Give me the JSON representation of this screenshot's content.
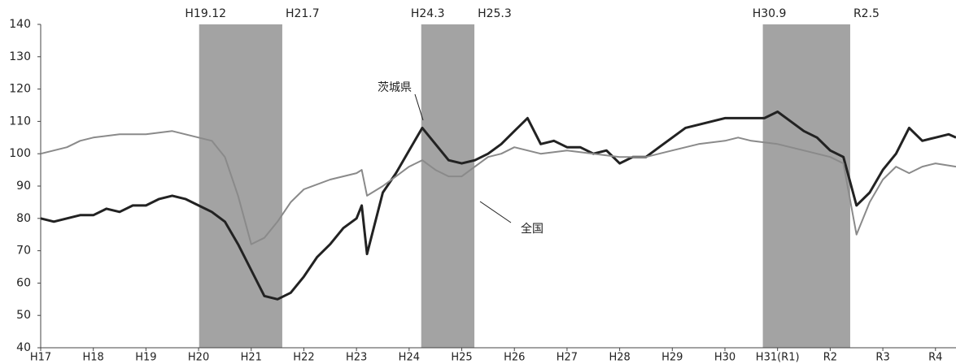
{
  "chart_data": {
    "type": "line",
    "xlim": [
      17,
      34.39
    ],
    "xticks": [
      {
        "value": 17,
        "label": "H17"
      },
      {
        "value": 18,
        "label": "H18"
      },
      {
        "value": 19,
        "label": "H19"
      },
      {
        "value": 20,
        "label": "H20"
      },
      {
        "value": 21,
        "label": "H21"
      },
      {
        "value": 22,
        "label": "H22"
      },
      {
        "value": 23,
        "label": "H23"
      },
      {
        "value": 24,
        "label": "H24"
      },
      {
        "value": 25,
        "label": "H25"
      },
      {
        "value": 26,
        "label": "H26"
      },
      {
        "value": 27,
        "label": "H27"
      },
      {
        "value": 28,
        "label": "H28"
      },
      {
        "value": 29,
        "label": "H29"
      },
      {
        "value": 30,
        "label": "H30"
      },
      {
        "value": 31,
        "label": "H31(R1)"
      },
      {
        "value": 32,
        "label": "R2"
      },
      {
        "value": 33,
        "label": "R3"
      },
      {
        "value": 34,
        "label": "R4"
      }
    ],
    "ylim": [
      40,
      140
    ],
    "yticks": [
      40,
      50,
      60,
      70,
      80,
      90,
      100,
      110,
      120,
      130,
      140
    ],
    "shading": [
      {
        "start": 20.01,
        "end": 21.59,
        "start_label": "H19.12",
        "end_label": "H21.7",
        "color": "#a3a3a3"
      },
      {
        "start": 24.23,
        "end": 25.24,
        "start_label": "H24.3",
        "end_label": "H25.3",
        "color": "#a3a3a3"
      },
      {
        "start": 30.72,
        "end": 32.38,
        "start_label": "H30.9",
        "end_label": "R2.5",
        "color": "#a3a3a3"
      }
    ],
    "series": [
      {
        "name": "茨城県",
        "color": "#222222",
        "x": [
          17,
          17.25,
          17.5,
          17.75,
          18,
          18.25,
          18.5,
          18.75,
          19,
          19.25,
          19.5,
          19.75,
          20,
          20.25,
          20.5,
          20.75,
          21,
          21.25,
          21.5,
          21.75,
          22,
          22.25,
          22.5,
          22.75,
          23,
          23.1,
          23.2,
          23.5,
          23.75,
          24,
          24.25,
          24.5,
          24.75,
          25,
          25.25,
          25.5,
          25.75,
          26,
          26.25,
          26.5,
          26.75,
          27,
          27.25,
          27.5,
          27.75,
          28,
          28.25,
          28.5,
          28.75,
          29,
          29.25,
          29.5,
          29.75,
          30,
          30.25,
          30.5,
          30.75,
          31,
          31.25,
          31.5,
          31.75,
          32,
          32.25,
          32.5,
          32.75,
          33,
          33.25,
          33.5,
          33.75,
          34,
          34.25,
          34.39
        ],
        "values": [
          80,
          79,
          80,
          81,
          81,
          83,
          82,
          84,
          84,
          86,
          87,
          86,
          84,
          82,
          79,
          72,
          64,
          56,
          55,
          57,
          62,
          68,
          72,
          77,
          80,
          84,
          69,
          88,
          94,
          101,
          108,
          103,
          98,
          97,
          98,
          100,
          103,
          107,
          111,
          103,
          104,
          102,
          102,
          100,
          101,
          97,
          99,
          99,
          102,
          105,
          108,
          109,
          110,
          111,
          111,
          111,
          111,
          113,
          110,
          107,
          105,
          101,
          99,
          84,
          88,
          95,
          100,
          108,
          104,
          105,
          106,
          105
        ]
      },
      {
        "name": "全国",
        "color": "#8a8a8a",
        "x": [
          17,
          17.25,
          17.5,
          17.75,
          18,
          18.5,
          19,
          19.5,
          19.75,
          20,
          20.25,
          20.5,
          20.75,
          21,
          21.25,
          21.5,
          21.75,
          22,
          22.5,
          23,
          23.1,
          23.2,
          23.5,
          23.75,
          24,
          24.25,
          24.5,
          24.75,
          25,
          25.25,
          25.5,
          25.75,
          26,
          26.5,
          27,
          27.5,
          28,
          28.5,
          29,
          29.5,
          30,
          30.25,
          30.5,
          31,
          31.5,
          32,
          32.25,
          32.5,
          32.75,
          33,
          33.25,
          33.5,
          33.75,
          34,
          34.39
        ],
        "values": [
          100,
          101,
          102,
          104,
          105,
          106,
          106,
          107,
          106,
          105,
          104,
          99,
          87,
          72,
          74,
          79,
          85,
          89,
          92,
          94,
          95,
          87,
          90,
          93,
          96,
          98,
          95,
          93,
          93,
          96,
          99,
          100,
          102,
          100,
          101,
          100,
          99,
          99,
          101,
          103,
          104,
          105,
          104,
          103,
          101,
          99,
          97,
          75,
          85,
          92,
          96,
          94,
          96,
          97,
          96
        ]
      }
    ]
  }
}
